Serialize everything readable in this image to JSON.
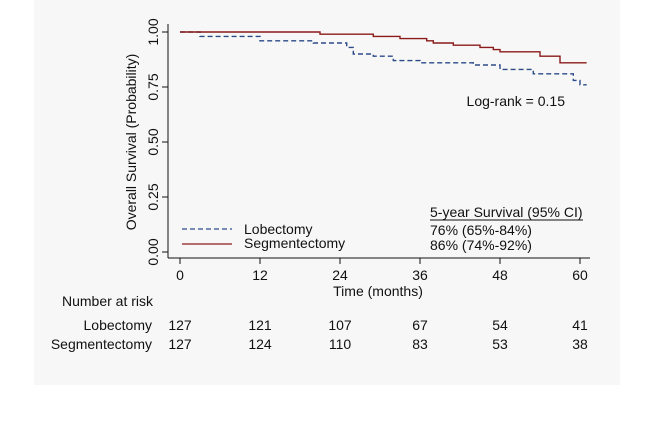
{
  "chart_data": {
    "type": "line",
    "title": "",
    "xlabel": "Time (months)",
    "ylabel": "Overall Survival (Probability)",
    "xlim": [
      0,
      60
    ],
    "ylim": [
      0,
      1
    ],
    "xticks": [
      "0",
      "12",
      "24",
      "36",
      "48",
      "60"
    ],
    "yticks": [
      "0.00",
      "0.25",
      "0.50",
      "0.75",
      "1.00"
    ],
    "grid": false,
    "legend_position": "bottom-left",
    "annotation": "Log-rank = 0.15",
    "survival_table": {
      "header": "5-year Survival (95% CI)",
      "rows": [
        "76% (65%-84%)",
        "86% (74%-92%)"
      ]
    },
    "series": [
      {
        "name": "Lobectomy",
        "color": "#2b4a8a",
        "style": "dashed",
        "points": [
          [
            0,
            1.0
          ],
          [
            3,
            1.0
          ],
          [
            3,
            0.98
          ],
          [
            12,
            0.98
          ],
          [
            12,
            0.96
          ],
          [
            20,
            0.96
          ],
          [
            20,
            0.95
          ],
          [
            25,
            0.95
          ],
          [
            25,
            0.93
          ],
          [
            26,
            0.93
          ],
          [
            26,
            0.9
          ],
          [
            29,
            0.9
          ],
          [
            29,
            0.89
          ],
          [
            32,
            0.89
          ],
          [
            32,
            0.87
          ],
          [
            36,
            0.87
          ],
          [
            36,
            0.86
          ],
          [
            44,
            0.86
          ],
          [
            44,
            0.85
          ],
          [
            48,
            0.85
          ],
          [
            48,
            0.83
          ],
          [
            53,
            0.83
          ],
          [
            53,
            0.81
          ],
          [
            59,
            0.81
          ],
          [
            59,
            0.78
          ],
          [
            60,
            0.78
          ],
          [
            60,
            0.76
          ],
          [
            61,
            0.76
          ]
        ]
      },
      {
        "name": "Segmentectomy",
        "color": "#8b1a1a",
        "style": "solid",
        "points": [
          [
            0,
            1.0
          ],
          [
            21,
            1.0
          ],
          [
            21,
            0.99
          ],
          [
            29,
            0.99
          ],
          [
            29,
            0.98
          ],
          [
            33,
            0.98
          ],
          [
            33,
            0.97
          ],
          [
            37,
            0.97
          ],
          [
            37,
            0.96
          ],
          [
            38,
            0.96
          ],
          [
            38,
            0.95
          ],
          [
            41,
            0.95
          ],
          [
            41,
            0.94
          ],
          [
            45,
            0.94
          ],
          [
            45,
            0.93
          ],
          [
            47,
            0.93
          ],
          [
            47,
            0.92
          ],
          [
            48,
            0.92
          ],
          [
            48,
            0.91
          ],
          [
            54,
            0.91
          ],
          [
            54,
            0.89
          ],
          [
            57,
            0.89
          ],
          [
            57,
            0.86
          ],
          [
            61,
            0.86
          ]
        ]
      }
    ]
  },
  "risk_table": {
    "title": "Number at risk",
    "rows": [
      {
        "label": "Lobectomy",
        "values": [
          127,
          121,
          107,
          67,
          54,
          41
        ]
      },
      {
        "label": "Segmentectomy",
        "values": [
          127,
          124,
          110,
          83,
          53,
          38
        ]
      }
    ]
  }
}
